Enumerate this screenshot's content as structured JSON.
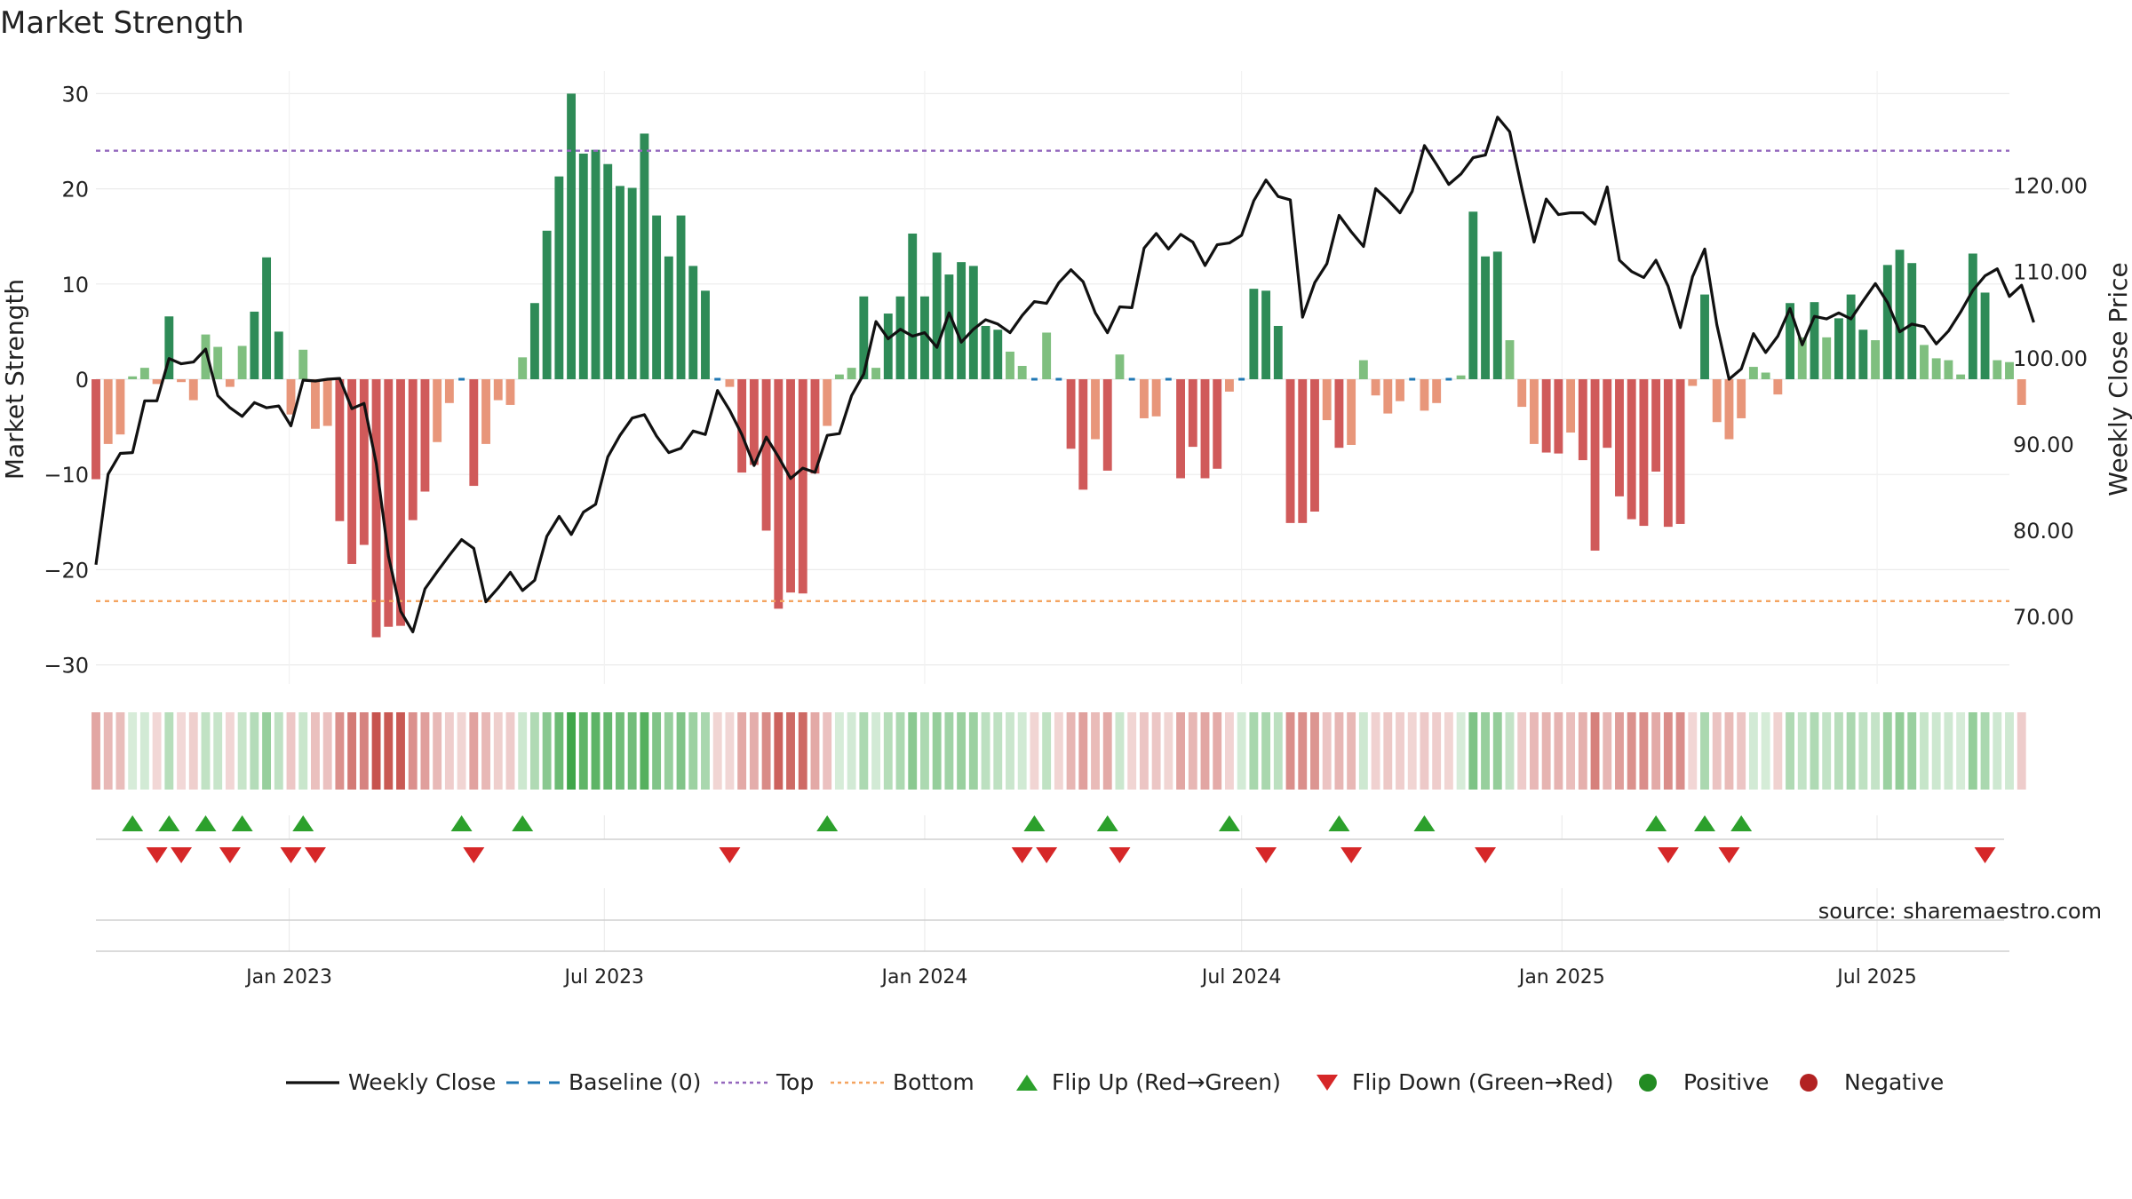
{
  "chart_data": {
    "type": "bar",
    "title": "Market Strength",
    "ylabel": "Market Strength",
    "y2label": "Weekly Close Price",
    "ylim": [
      -32,
      32
    ],
    "y2lim": [
      62.18,
      133.24
    ],
    "yticks": [
      -30,
      -20,
      -10,
      0,
      10,
      20,
      30
    ],
    "y2ticks": [
      "70.00",
      "80.00",
      "90.00",
      "100.00",
      "110.00",
      "120.00"
    ],
    "x_range": [
      "2022-09-12",
      "2025-09-15"
    ],
    "x_tick_labels": [
      {
        "label": "Jan 2023",
        "date": "2023-01-01"
      },
      {
        "label": "Jul 2023",
        "date": "2023-07-01"
      },
      {
        "label": "Jan 2024",
        "date": "2024-01-01"
      },
      {
        "label": "Jul 2024",
        "date": "2024-07-01"
      },
      {
        "label": "Jan 2025",
        "date": "2025-01-01"
      },
      {
        "label": "Jul 2025",
        "date": "2025-07-01"
      }
    ],
    "start_week": "2022-09-12",
    "week_days": 7,
    "top_line": 24,
    "bottom_line": -23.3,
    "strength": [
      -10.5,
      -6.8,
      -5.8,
      0.3,
      1.2,
      -0.5,
      6.6,
      -0.3,
      -2.2,
      4.7,
      3.4,
      -0.8,
      3.5,
      7.1,
      12.8,
      5,
      -3.7,
      3.1,
      -5.2,
      -4.9,
      -14.9,
      -19.4,
      -17.4,
      -27.1,
      -26,
      -25.9,
      -14.8,
      -11.8,
      -6.6,
      -2.5,
      0,
      -11.2,
      -6.8,
      -2.2,
      -2.7,
      2.3,
      8,
      15.6,
      21.3,
      30,
      23.7,
      24.1,
      22.6,
      20.3,
      20.1,
      25.8,
      17.2,
      12.9,
      17.2,
      11.9,
      9.3,
      0,
      -0.8,
      -9.8,
      -9,
      -15.9,
      -24.1,
      -22.4,
      -22.5,
      -9.9,
      -4.9,
      0.5,
      1.2,
      8.7,
      1.2,
      6.9,
      8.7,
      15.3,
      8.7,
      13.3,
      11,
      12.3,
      11.9,
      5.6,
      5.2,
      2.9,
      1.4,
      0,
      4.9,
      0,
      -7.3,
      -11.6,
      -6.3,
      -9.6,
      2.6,
      0,
      -4.1,
      -3.9,
      0,
      -10.4,
      -7.1,
      -10.4,
      -9.4,
      -1.3,
      0,
      9.5,
      9.3,
      5.6,
      -15.1,
      -15.1,
      -13.9,
      -4.3,
      -7.2,
      -6.9,
      2,
      -1.7,
      -3.6,
      -2.3,
      0,
      -3.3,
      -2.5,
      0,
      0.4,
      17.6,
      12.9,
      13.4,
      4.1,
      -2.9,
      -6.8,
      -7.7,
      -7.8,
      -5.6,
      -8.5,
      -18,
      -7.2,
      -12.3,
      -14.7,
      -15.4,
      -9.7,
      -15.5,
      -15.2,
      -0.7,
      8.9,
      -4.5,
      -6.3,
      -4.1,
      1.3,
      0.7,
      -1.6,
      8,
      4.4,
      8.1,
      4.4,
      6.4,
      8.9,
      5.2,
      4.1,
      12,
      13.6,
      12.2,
      3.6,
      2.2,
      2,
      0.5,
      13.2,
      9.1,
      2,
      1.8,
      -2.7
    ],
    "close": [
      76,
      86.5,
      88.9,
      89,
      95,
      95,
      99.9,
      99.3,
      99.5,
      101,
      95.6,
      94.2,
      93.2,
      94.8,
      94.2,
      94.4,
      92.1,
      97.4,
      97.3,
      97.5,
      97.6,
      94.1,
      94.7,
      87.7,
      77,
      70.6,
      68.2,
      73.2,
      75.2,
      77.1,
      78.9,
      77.9,
      71.7,
      73.3,
      75.1,
      73,
      74.2,
      79.3,
      81.6,
      79.5,
      82.1,
      83,
      88.5,
      91,
      93,
      93.4,
      90.9,
      89,
      89.5,
      91.5,
      91.1,
      96.2,
      93.9,
      91.1,
      87.5,
      90.8,
      88.5,
      86,
      87.2,
      86.7,
      91,
      91.2,
      95.6,
      98.1,
      104.2,
      102.2,
      103.3,
      102.5,
      102.9,
      101.2,
      105.2,
      101.8,
      103.3,
      104.4,
      103.9,
      102.9,
      104.9,
      106.5,
      106.3,
      108.7,
      110.2,
      108.8,
      105.2,
      102.9,
      105.9,
      105.8,
      112.7,
      114.4,
      112.6,
      114.3,
      113.4,
      110.7,
      113.1,
      113.3,
      114.2,
      118.2,
      120.6,
      118.7,
      118.3,
      104.7,
      108.7,
      110.9,
      116.5,
      114.6,
      112.9,
      119.6,
      118.3,
      116.8,
      119.3,
      124.6,
      122.4,
      120.1,
      121.3,
      123.2,
      123.5,
      127.9,
      126.2,
      119.6,
      113.4,
      118.4,
      116.6,
      116.8,
      116.8,
      115.5,
      119.8,
      111.3,
      110,
      109.3,
      111.3,
      108.3,
      103.5,
      109.4,
      112.6,
      103.8,
      97.5,
      98.7,
      102.8,
      100.6,
      102.5,
      105.7,
      101.5,
      104.8,
      104.5,
      105.2,
      104.5,
      106.6,
      108.6,
      106.4,
      103,
      103.9,
      103.6,
      101.6,
      103.1,
      105.3,
      107.8,
      109.5,
      110.3,
      107.1,
      108.4,
      104.1
    ],
    "shade_values": [
      -10.5,
      -6.8,
      -5.8,
      0.3,
      1.2,
      -0.5,
      6.6,
      -0.3,
      -2.2,
      4.7,
      3.4,
      -0.8,
      3.5,
      7.1,
      12.8,
      5,
      -3.7,
      3.1,
      -5.2,
      -4.9,
      -14.9,
      -19.4,
      -17.4,
      -27.1,
      -26,
      -25.9,
      -14.8,
      -11.8,
      -6.6,
      -2.5,
      -1,
      -11.2,
      -6.8,
      -2.2,
      -2.7,
      2.3,
      8,
      15.6,
      21.3,
      30,
      23.7,
      24.1,
      22.6,
      20.3,
      20.1,
      25.8,
      17.2,
      12.9,
      17.2,
      11.9,
      9.3,
      -1,
      -0.8,
      -9.8,
      -9,
      -15.9,
      -24.1,
      -22.4,
      -22.5,
      -9.9,
      -4.9,
      0.5,
      1.2,
      8.7,
      1.2,
      6.9,
      8.7,
      15.3,
      8.7,
      13.3,
      11,
      12.3,
      11.9,
      5.6,
      5.2,
      2.9,
      1.4,
      -1,
      4.9,
      -1,
      -7.3,
      -11.6,
      -6.3,
      -9.6,
      2.6,
      -1,
      -4.1,
      -3.9,
      -1,
      -10.4,
      -7.1,
      -10.4,
      -9.4,
      -1.3,
      1,
      9.5,
      9.3,
      5.6,
      -15.1,
      -15.1,
      -13.9,
      -4.3,
      -7.2,
      -6.9,
      2,
      -1.7,
      -3.6,
      -2.3,
      -1,
      -3.3,
      -2.5,
      -1,
      0.4,
      17.6,
      12.9,
      13.4,
      4.1,
      -2.9,
      -6.8,
      -7.7,
      -7.8,
      -5.6,
      -8.5,
      -18,
      -7.2,
      -12.3,
      -14.7,
      -15.4,
      -9.7,
      -15.5,
      -15.2,
      -0.7,
      8.9,
      -4.5,
      -6.3,
      -4.1,
      1.3,
      0.7,
      -1.6,
      8,
      4.4,
      8.1,
      4.4,
      6.4,
      8.9,
      5.2,
      4.1,
      12,
      13.6,
      12.2,
      3.6,
      2.2,
      2,
      0.5,
      13.2,
      9.1,
      2,
      1.8,
      -2.7
    ],
    "flip_up_weeks": [
      3,
      6,
      9,
      12,
      17,
      30,
      35,
      60,
      77,
      83,
      93,
      102,
      109,
      128,
      132,
      135
    ],
    "flip_down_weeks": [
      5,
      7,
      11,
      16,
      18,
      31,
      52,
      76,
      78,
      84,
      96,
      103,
      114,
      129,
      134,
      155
    ],
    "legend": [
      "Weekly Close",
      "Baseline (0)",
      "Top",
      "Bottom",
      "Flip Up (Red→Green)",
      "Flip Down (Green→Red)",
      "Positive",
      "Negative"
    ],
    "source": "source: sharemaestro.com",
    "colors": {
      "pos_strong": "#2e8b57",
      "pos_weak": "#7fbf7f",
      "neg_strong": "#d05a5a",
      "neg_weak": "#e8967a",
      "line": "#111111",
      "baseline": "#1f77b4",
      "top": "#9467bd",
      "bottom": "#f4a460",
      "flip_up": "#2ca02c",
      "flip_down": "#d62728",
      "positive_dot": "#228b22",
      "negative_dot": "#b22222"
    }
  }
}
